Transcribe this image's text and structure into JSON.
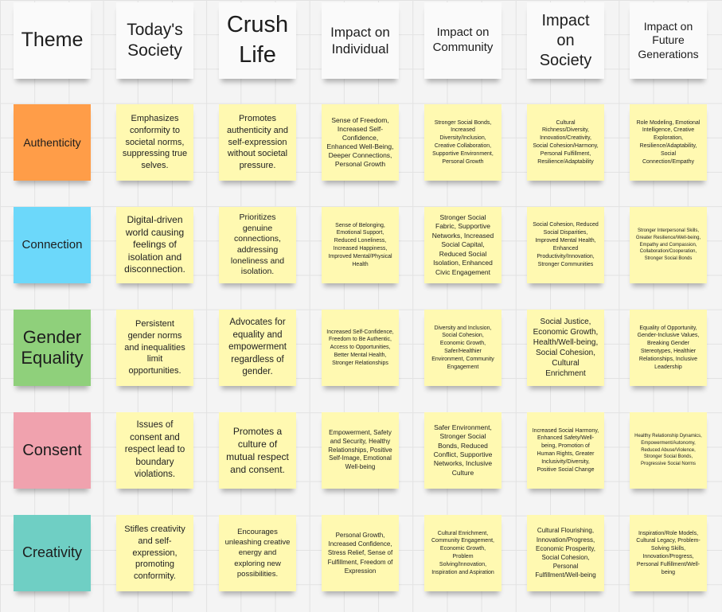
{
  "colors": {
    "header_note": "#fafafa",
    "sticky_yellow": "#fff9b1",
    "authenticity": "#ff9d48",
    "connection": "#6cd8fa",
    "gender_equality": "#8fd07b",
    "consent": "#f0a2ae",
    "creativity": "#6fcfc4"
  },
  "headers": {
    "theme": "Theme",
    "todays_society": "Today's Society",
    "crush_life": "Crush Life",
    "impact_individual": "Impact on Individual",
    "impact_community": "Impact on Community",
    "impact_society": "Impact on Society",
    "impact_future": "Impact on Future Generations"
  },
  "rows": {
    "authenticity": {
      "theme": "Authenticity",
      "todays_society": "Emphasizes conformity to societal norms, suppressing true selves.",
      "crush_life": "Promotes authenticity and self-expression without societal pressure.",
      "impact_individual": "Sense of Freedom, Increased Self-Confidence, Enhanced Well-Being, Deeper Connections, Personal Growth",
      "impact_community": "Stronger Social Bonds, Increased Diversity/Inclusion, Creative Collaboration, Supportive Environment, Personal Growth",
      "impact_society": "Cultural Richness/Diversity, Innovation/Creativity, Social Cohesion/Harmony, Personal Fulfillment, Resilience/Adaptability",
      "impact_future": "Role Modeling, Emotional Intelligence, Creative Exploration, Resilience/Adaptability, Social Connection/Empathy"
    },
    "connection": {
      "theme": "Connection",
      "todays_society": "Digital-driven world causing feelings of isolation and disconnection.",
      "crush_life": "Prioritizes genuine connections, addressing loneliness and isolation.",
      "impact_individual": "Sense of Belonging, Emotional Support, Reduced Loneliness, Increased Happiness, Improved Mental/Physical Health",
      "impact_community": "Stronger Social Fabric, Supportive Networks, Increased Social Capital, Reduced Social Isolation, Enhanced Civic Engagement",
      "impact_society": "Social Cohesion, Reduced Social Disparities, Improved Mental Health, Enhanced Productivity/Innovation, Stronger Communities",
      "impact_future": "Stronger Interpersonal Skills, Greater Resilience/Well-being, Empathy and Compassion, Collaboration/Cooperation, Stronger Social Bonds"
    },
    "gender_equality": {
      "theme": "Gender Equality",
      "todays_society": "Persistent gender norms and inequalities limit opportunities.",
      "crush_life": "Advocates for equality and empowerment regardless of gender.",
      "impact_individual": "Increased Self-Confidence, Freedom to Be Authentic, Access to Opportunities, Better Mental Health, Stronger Relationships",
      "impact_community": "Diversity and Inclusion, Social Cohesion, Economic Growth, Safer/Healthier Environment, Community Engagement",
      "impact_society": "Social Justice, Economic Growth, Health/Well-being, Social Cohesion, Cultural Enrichment",
      "impact_future": "Equality of Opportunity, Gender-Inclusive Values, Breaking Gender Stereotypes, Healthier Relationships, Inclusive Leadership"
    },
    "consent": {
      "theme": "Consent",
      "todays_society": "Issues of consent and respect lead to boundary violations.",
      "crush_life": "Promotes a culture of mutual respect and consent.",
      "impact_individual": "Empowerment, Safety and Security, Healthy Relationships, Positive Self-Image, Emotional Well-being",
      "impact_community": "Safer Environment, Stronger Social Bonds, Reduced Conflict, Supportive Networks, Inclusive Culture",
      "impact_society": "Increased Social Harmony, Enhanced Safety/Well-being, Promotion of Human Rights, Greater Inclusivity/Diversity, Positive Social Change",
      "impact_future": "Healthy Relationship Dynamics, Empowerment/Autonomy, Reduced Abuse/Violence, Stronger Social Bonds, Progressive Social Norms"
    },
    "creativity": {
      "theme": "Creativity",
      "todays_society": "Stifles creativity and self-expression, promoting conformity.",
      "crush_life": "Encourages unleashing creative energy and exploring new possibilities.",
      "impact_individual": "Personal Growth, Increased Confidence, Stress Relief, Sense of Fulfillment, Freedom of Expression",
      "impact_community": "Cultural Enrichment, Community Engagement, Economic Growth, Problem Solving/Innovation, Inspiration and Aspiration",
      "impact_society": "Cultural Flourishing, Innovation/Progress, Economic Prosperity, Social Cohesion, Personal Fulfillment/Well-being",
      "impact_future": "Inspiration/Role Models, Cultural Legacy, Problem-Solving Skills, Innovation/Progress, Personal Fulfillment/Well-being"
    }
  }
}
